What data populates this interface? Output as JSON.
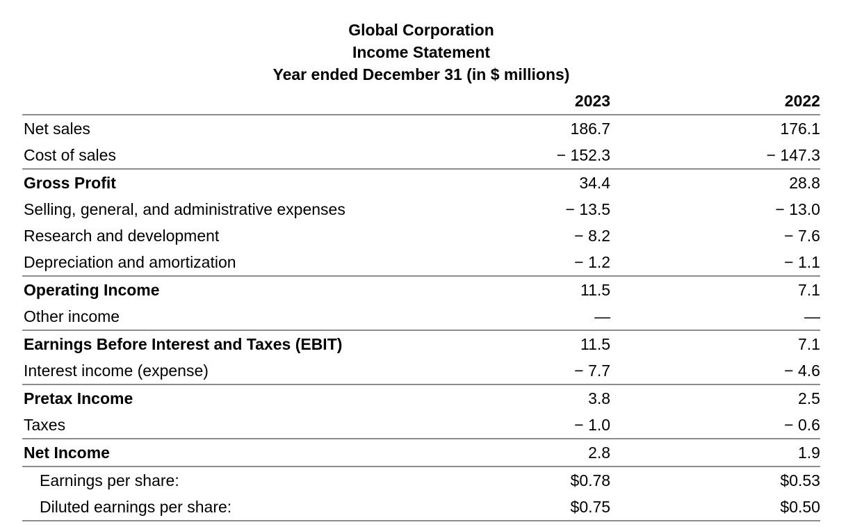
{
  "header": {
    "company": "Global Corporation",
    "statement": "Income Statement",
    "period": "Year ended December 31 (in $ millions)"
  },
  "columns": [
    "2023",
    "2022"
  ],
  "rows": [
    {
      "label": "Net sales",
      "v2023": "186.7",
      "v2022": "176.1",
      "bold": false,
      "rule": false,
      "indent": false
    },
    {
      "label": "Cost of sales",
      "v2023": "− 152.3",
      "v2022": "− 147.3",
      "bold": false,
      "rule": false,
      "indent": false
    },
    {
      "label": "Gross Profit",
      "v2023": "34.4",
      "v2022": "28.8",
      "bold": true,
      "rule": true,
      "indent": false
    },
    {
      "label": "Selling, general, and administrative expenses",
      "v2023": "− 13.5",
      "v2022": "− 13.0",
      "bold": false,
      "rule": false,
      "indent": false
    },
    {
      "label": "Research and development",
      "v2023": "− 8.2",
      "v2022": "− 7.6",
      "bold": false,
      "rule": false,
      "indent": false
    },
    {
      "label": "Depreciation and amortization",
      "v2023": "− 1.2",
      "v2022": "− 1.1",
      "bold": false,
      "rule": false,
      "indent": false
    },
    {
      "label": "Operating Income",
      "v2023": "11.5",
      "v2022": "7.1",
      "bold": true,
      "rule": true,
      "indent": false
    },
    {
      "label": "Other income",
      "v2023": "—",
      "v2022": "—",
      "bold": false,
      "rule": false,
      "indent": false
    },
    {
      "label": "Earnings Before Interest and Taxes (EBIT)",
      "v2023": "11.5",
      "v2022": "7.1",
      "bold": true,
      "rule": true,
      "indent": false
    },
    {
      "label": "Interest income (expense)",
      "v2023": "− 7.7",
      "v2022": "− 4.6",
      "bold": false,
      "rule": false,
      "indent": false
    },
    {
      "label": "Pretax Income",
      "v2023": "3.8",
      "v2022": "2.5",
      "bold": true,
      "rule": true,
      "indent": false
    },
    {
      "label": "Taxes",
      "v2023": "− 1.0",
      "v2022": "− 0.6",
      "bold": false,
      "rule": false,
      "indent": false
    },
    {
      "label": "Net Income",
      "v2023": "2.8",
      "v2022": "1.9",
      "bold": true,
      "rule": true,
      "indent": false
    },
    {
      "label": "Earnings per share:",
      "v2023": "$0.78",
      "v2022": "$0.53",
      "bold": false,
      "rule": true,
      "indent": true
    },
    {
      "label": "Diluted earnings per share:",
      "v2023": "$0.75",
      "v2022": "$0.50",
      "bold": false,
      "rule": false,
      "indent": true
    }
  ]
}
